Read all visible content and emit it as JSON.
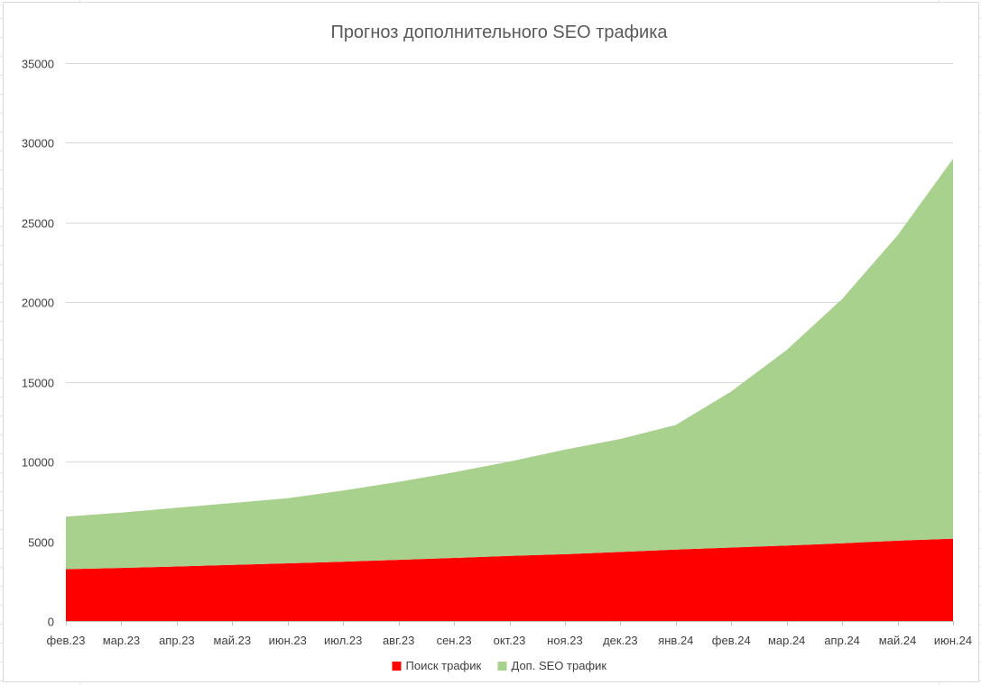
{
  "chart_data": {
    "type": "area",
    "stacked": true,
    "title": "Прогноз дополнительного SEO трафика",
    "xlabel": "",
    "ylabel": "",
    "categories": [
      "фев.23",
      "мар.23",
      "апр.23",
      "май.23",
      "июн.23",
      "июл.23",
      "авг.23",
      "сен.23",
      "окт.23",
      "ноя.23",
      "дек.23",
      "янв.24",
      "фев.24",
      "мар.24",
      "апр.24",
      "май.24",
      "июн.24"
    ],
    "y_ticks": [
      "0",
      "5000",
      "10000",
      "15000",
      "20000",
      "25000",
      "30000",
      "35000"
    ],
    "ylim": [
      0,
      35000
    ],
    "grid": true,
    "legend_position": "bottom",
    "series": [
      {
        "name": "Поиск трафик",
        "color": "#ff0000",
        "values": [
          3250,
          3330,
          3420,
          3520,
          3620,
          3720,
          3840,
          3960,
          4080,
          4190,
          4330,
          4480,
          4610,
          4730,
          4880,
          5040,
          5170
        ]
      },
      {
        "name": "Доп. SEO трафик",
        "color": "#a9d18e",
        "values": [
          3300,
          3470,
          3680,
          3880,
          4080,
          4460,
          4890,
          5370,
          5920,
          6560,
          7090,
          7820,
          9790,
          12270,
          15320,
          19160,
          23830
        ]
      }
    ]
  }
}
